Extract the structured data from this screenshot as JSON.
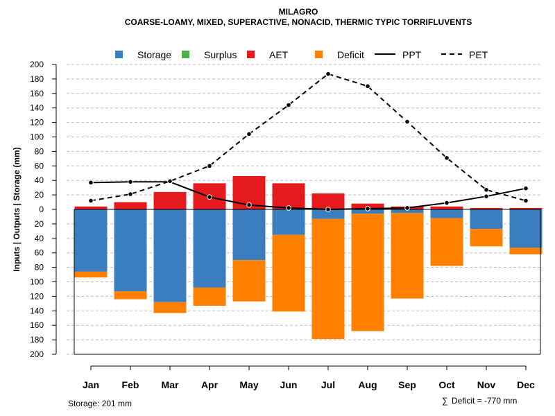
{
  "chart_data": {
    "type": "bar",
    "title": "MILAGRO",
    "subtitle": "COARSE-LOAMY, MIXED, SUPERACTIVE, NONACID, THERMIC TYPIC TORRIFLUVENTS",
    "categories": [
      "Jan",
      "Feb",
      "Mar",
      "Apr",
      "May",
      "Jun",
      "Jul",
      "Aug",
      "Sep",
      "Oct",
      "Nov",
      "Dec"
    ],
    "ylabel": "Inputs | Outputs | Storage    (mm)",
    "ylim": [
      -200,
      200
    ],
    "yticks": [
      200,
      180,
      160,
      140,
      120,
      100,
      80,
      60,
      40,
      20,
      0,
      20,
      40,
      60,
      80,
      100,
      120,
      140,
      160,
      180,
      200
    ],
    "grid": true,
    "legend_position": "top",
    "legend": [
      "Storage",
      "Surplus",
      "AET",
      "Deficit",
      "PPT",
      "PET"
    ],
    "colors": {
      "storage": "#3a7ebf",
      "surplus": "#4daf4a",
      "aet": "#e41a1c",
      "deficit": "#ff7f00",
      "line": "#000000",
      "grid": "#bbbbbb"
    },
    "series": [
      {
        "name": "AET",
        "kind": "bar-up",
        "values": [
          4,
          10,
          24,
          36,
          46,
          36,
          22,
          8,
          4,
          4,
          2,
          2
        ]
      },
      {
        "name": "Surplus",
        "kind": "bar-up",
        "values": [
          0,
          0,
          0,
          0,
          0,
          0,
          0,
          0,
          0,
          0,
          0,
          0
        ]
      },
      {
        "name": "Storage",
        "kind": "bar-down",
        "values": [
          86,
          113,
          128,
          108,
          70,
          35,
          13,
          6,
          5,
          12,
          27,
          53
        ]
      },
      {
        "name": "Deficit",
        "kind": "bar-down",
        "values": [
          8,
          11,
          15,
          25,
          57,
          106,
          166,
          162,
          118,
          66,
          24,
          9
        ]
      },
      {
        "name": "PPT",
        "kind": "line",
        "style": "solid",
        "values": [
          37,
          38,
          38,
          17,
          6,
          2,
          0,
          1,
          2,
          9,
          18,
          29
        ]
      },
      {
        "name": "PET",
        "kind": "line",
        "style": "dashed",
        "values": [
          12,
          21,
          39,
          60,
          104,
          144,
          187,
          170,
          121,
          71,
          27,
          12
        ]
      }
    ],
    "annotations": {
      "storage": "Storage: 201 mm",
      "deficit_symbol": "∑",
      "deficit": "Deficit = -770 mm"
    }
  }
}
